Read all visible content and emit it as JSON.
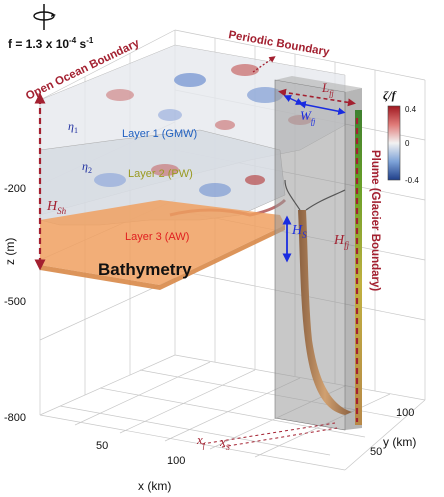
{
  "coriolis": {
    "prefix": "f = ",
    "value": "1.3 x 10",
    "exp": "-4",
    "unit": " s",
    "unit_exp": "-1"
  },
  "boundaries": {
    "periodic": "Periodic Boundary",
    "open_ocean": "Open Ocean Boundary",
    "plume": "Plume (Glacier Boundary)"
  },
  "layers": {
    "layer1": "Layer 1 (GMW)",
    "layer2": "Layer 2 (PW)",
    "layer3": "Layer 3 (AW)",
    "bathymetry": "Bathymetry"
  },
  "symbols": {
    "eta1": "η",
    "eta1_sub": "1",
    "eta2": "η",
    "eta2_sub": "2",
    "h_sh": "H",
    "h_sh_sub": "Sh",
    "h_s": "H",
    "h_s_sub": "S",
    "h_fj": "H",
    "h_fj_sub": "fj",
    "l_fj": "L",
    "l_fj_sub": "fj",
    "w_fj": "W",
    "w_fj_sub": "fj",
    "x_f": "x",
    "x_f_sub": "f",
    "x_s": "x",
    "x_s_sub": "S"
  },
  "axes": {
    "z_label": "z (m)",
    "z_ticks": [
      "-200",
      "-500",
      "-800"
    ],
    "x_label": "x (km)",
    "x_ticks": [
      "50",
      "100"
    ],
    "y_label": "y (km)",
    "y_ticks": [
      "50",
      "100"
    ]
  },
  "colorbar": {
    "label": "ζ/f",
    "ticks": [
      "0.4",
      "0",
      "-0.4"
    ],
    "colors": {
      "top": "#a01820",
      "mid": "#f2f2f2",
      "bottom": "#1f3f8a"
    }
  },
  "colors": {
    "boundary_red": "#a32030",
    "arrow_blue": "#1a2ce0",
    "bathymetry_orange": "#f0a060",
    "plume_brown": "#b08060",
    "layer1_text": "#2060c0",
    "layer2_text": "#9a9a20",
    "layer3_text": "#e02020"
  }
}
